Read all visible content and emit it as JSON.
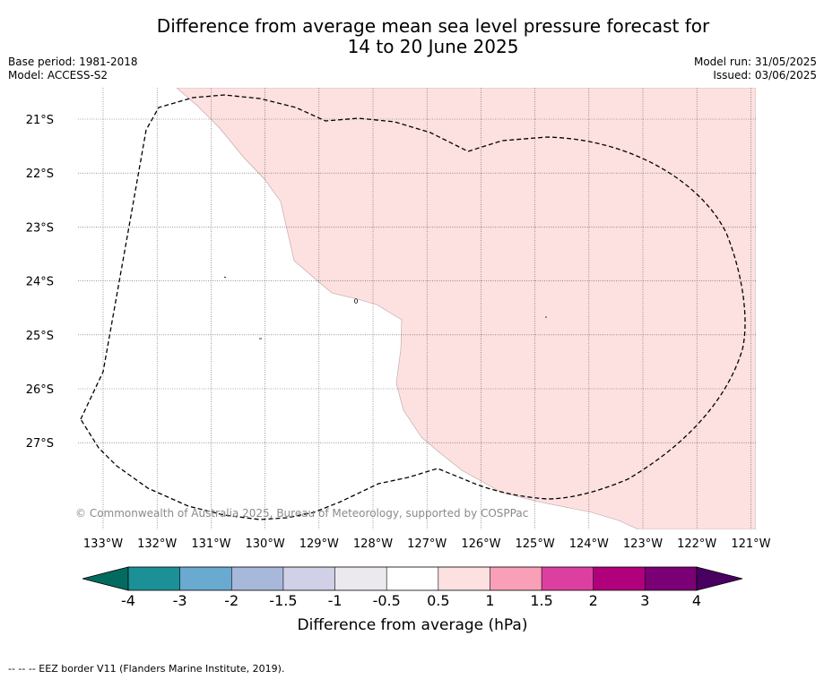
{
  "title_line1": "Difference from average mean sea level pressure forecast for",
  "title_line2": "14 to 20 June 2025",
  "base_period": "Base period: 1981-2018",
  "model": "Model: ACCESS-S2",
  "model_run": "Model run: 31/05/2025",
  "issued": "Issued: 03/06/2025",
  "copyright": "© Commonwealth of Australia 2025, Bureau of Meteorology, supported by COSPPac",
  "lat_labels": [
    "21°S",
    "22°S",
    "23°S",
    "24°S",
    "25°S",
    "26°S",
    "27°S"
  ],
  "lon_labels": [
    "133°W",
    "132°W",
    "131°W",
    "130°W",
    "129°W",
    "128°W",
    "127°W",
    "126°W",
    "125°W",
    "124°W",
    "123°W",
    "122°W",
    "121°W"
  ],
  "colorbar": {
    "title": "Difference from average (hPa)",
    "tick_labels": [
      "-4",
      "-3",
      "-2",
      "-1.5",
      "-1",
      "-0.5",
      "0.5",
      "1",
      "1.5",
      "2",
      "3",
      "4"
    ],
    "colors": [
      "#1b9096",
      "#6aaad0",
      "#a8b8da",
      "#d0d0e6",
      "#ebe9ee",
      "#ffffff",
      "#fde0e0",
      "#f9a0b8",
      "#dd3fa0",
      "#b0007c",
      "#7b0076"
    ],
    "extend_low_color": "#006b5e",
    "extend_high_color": "#4a0060"
  },
  "shading": {
    "anomaly_bin": "0.5 to 1",
    "color": "#fde0e0"
  },
  "eez_legend": "--  --  -- EEZ border V11 (Flanders Marine Institute, 2019)."
}
